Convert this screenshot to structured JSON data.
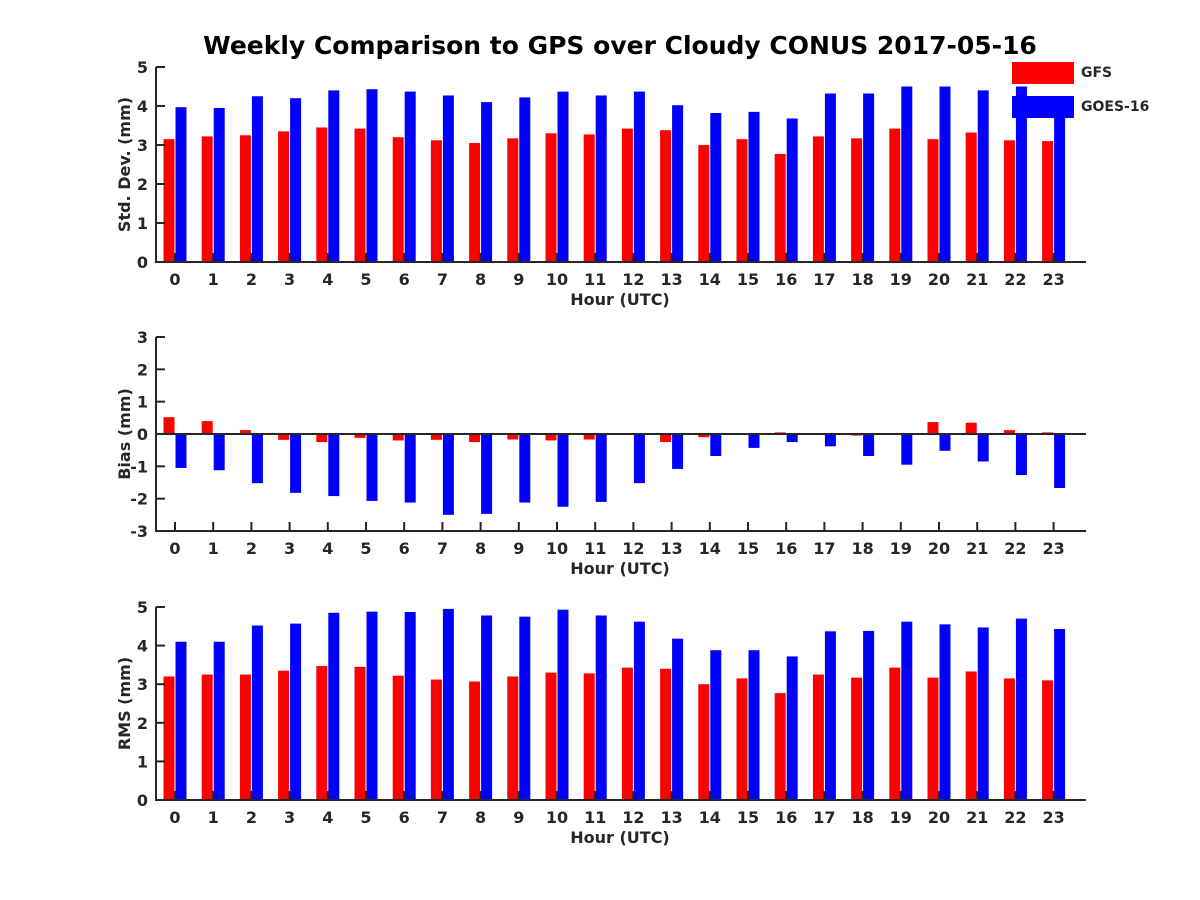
{
  "chart_data": [
    {
      "type": "bar",
      "title": "Weekly Comparison to GPS over Cloudy CONUS 2017-05-16",
      "xlabel": "Hour (UTC)",
      "ylabel": "Std. Dev. (mm)",
      "ylim": [
        0,
        5
      ],
      "yticks": [
        0,
        1,
        2,
        3,
        4,
        5
      ],
      "categories": [
        "0",
        "1",
        "2",
        "3",
        "4",
        "5",
        "6",
        "7",
        "8",
        "9",
        "10",
        "11",
        "12",
        "13",
        "14",
        "15",
        "16",
        "17",
        "18",
        "19",
        "20",
        "21",
        "22",
        "23"
      ],
      "series": [
        {
          "name": "GFS",
          "color": "#ff0000",
          "values": [
            3.15,
            3.22,
            3.25,
            3.35,
            3.45,
            3.42,
            3.2,
            3.12,
            3.05,
            3.17,
            3.3,
            3.27,
            3.42,
            3.38,
            3.0,
            3.15,
            2.77,
            3.22,
            3.17,
            3.42,
            3.15,
            3.32,
            3.12,
            3.1
          ]
        },
        {
          "name": "GOES-16",
          "color": "#0000ff",
          "values": [
            3.97,
            3.95,
            4.25,
            4.2,
            4.4,
            4.43,
            4.37,
            4.27,
            4.1,
            4.22,
            4.37,
            4.27,
            4.37,
            4.02,
            3.82,
            3.85,
            3.68,
            4.32,
            4.32,
            4.5,
            4.5,
            4.4,
            4.5,
            3.85
          ]
        }
      ],
      "legend_position": "top-right",
      "grid": false
    },
    {
      "type": "bar",
      "xlabel": "Hour (UTC)",
      "ylabel": "Bias (mm)",
      "ylim": [
        -3,
        3
      ],
      "yticks": [
        -3,
        -2,
        -1,
        0,
        1,
        2,
        3
      ],
      "categories": [
        "0",
        "1",
        "2",
        "3",
        "4",
        "5",
        "6",
        "7",
        "8",
        "9",
        "10",
        "11",
        "12",
        "13",
        "14",
        "15",
        "16",
        "17",
        "18",
        "19",
        "20",
        "21",
        "22",
        "23"
      ],
      "series": [
        {
          "name": "GFS",
          "color": "#ff0000",
          "values": [
            0.52,
            0.4,
            0.12,
            -0.18,
            -0.25,
            -0.12,
            -0.2,
            -0.18,
            -0.25,
            -0.17,
            -0.2,
            -0.17,
            -0.02,
            -0.25,
            -0.1,
            -0.03,
            0.05,
            -0.02,
            -0.05,
            -0.02,
            0.37,
            0.35,
            0.12,
            0.05
          ]
        },
        {
          "name": "GOES-16",
          "color": "#0000ff",
          "values": [
            -1.05,
            -1.12,
            -1.52,
            -1.82,
            -1.92,
            -2.07,
            -2.12,
            -2.5,
            -2.47,
            -2.12,
            -2.25,
            -2.1,
            -1.52,
            -1.08,
            -0.68,
            -0.43,
            -0.25,
            -0.38,
            -0.68,
            -0.95,
            -0.52,
            -0.85,
            -1.27,
            -1.67
          ]
        }
      ],
      "zero_line": true,
      "grid": false
    },
    {
      "type": "bar",
      "xlabel": "Hour (UTC)",
      "ylabel": "RMS (mm)",
      "ylim": [
        0,
        5
      ],
      "yticks": [
        0,
        1,
        2,
        3,
        4,
        5
      ],
      "categories": [
        "0",
        "1",
        "2",
        "3",
        "4",
        "5",
        "6",
        "7",
        "8",
        "9",
        "10",
        "11",
        "12",
        "13",
        "14",
        "15",
        "16",
        "17",
        "18",
        "19",
        "20",
        "21",
        "22",
        "23"
      ],
      "series": [
        {
          "name": "GFS",
          "color": "#ff0000",
          "values": [
            3.2,
            3.25,
            3.25,
            3.35,
            3.47,
            3.45,
            3.22,
            3.12,
            3.07,
            3.2,
            3.3,
            3.28,
            3.43,
            3.4,
            3.0,
            3.15,
            2.77,
            3.25,
            3.17,
            3.43,
            3.17,
            3.33,
            3.15,
            3.1
          ]
        },
        {
          "name": "GOES-16",
          "color": "#0000ff",
          "values": [
            4.1,
            4.1,
            4.52,
            4.57,
            4.85,
            4.88,
            4.87,
            4.95,
            4.78,
            4.75,
            4.93,
            4.78,
            4.62,
            4.18,
            3.88,
            3.88,
            3.72,
            4.37,
            4.38,
            4.62,
            4.55,
            4.47,
            4.7,
            4.43
          ]
        }
      ],
      "grid": false
    }
  ],
  "legend": {
    "items": [
      {
        "label": "GFS",
        "color": "#ff0000"
      },
      {
        "label": "GOES-16",
        "color": "#0000ff"
      }
    ]
  }
}
